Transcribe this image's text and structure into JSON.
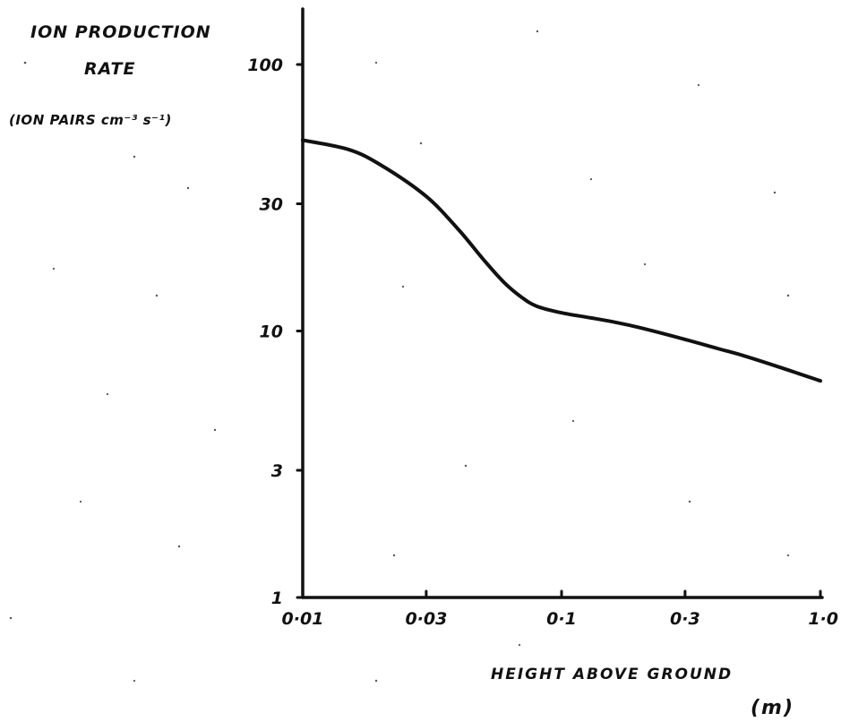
{
  "chart_data": {
    "type": "line",
    "ylabel_lines": [
      "ION PRODUCTION",
      "RATE"
    ],
    "ylabel_units": "(ION PAIRS cm⁻³ s⁻¹)",
    "xlabel_lines": [
      "HEIGHT ABOVE GROUND",
      "(m)"
    ],
    "x_scale": "log",
    "y_scale": "log",
    "xlim": [
      0.01,
      1.0
    ],
    "ylim": [
      1,
      100
    ],
    "x_ticks": [
      {
        "value": 0.01,
        "label": "0·01"
      },
      {
        "value": 0.03,
        "label": "0·03"
      },
      {
        "value": 0.1,
        "label": "0·1"
      },
      {
        "value": 0.3,
        "label": "0·3"
      },
      {
        "value": 1.0,
        "label": "1·0"
      }
    ],
    "y_ticks": [
      {
        "value": 1,
        "label": "1"
      },
      {
        "value": 3,
        "label": "3"
      },
      {
        "value": 10,
        "label": "10"
      },
      {
        "value": 30,
        "label": "30"
      },
      {
        "value": 100,
        "label": "100"
      }
    ],
    "grid": false,
    "series": [
      {
        "x": [
          0.01,
          0.015,
          0.02,
          0.03,
          0.04,
          0.05,
          0.06,
          0.07,
          0.08,
          0.1,
          0.13,
          0.16,
          0.2,
          0.3,
          0.4,
          0.5,
          0.7,
          1.0
        ],
        "y": [
          52,
          48,
          42,
          32,
          24,
          18.5,
          15.2,
          13.4,
          12.4,
          11.7,
          11.2,
          10.8,
          10.3,
          9.3,
          8.6,
          8.1,
          7.3,
          6.5
        ]
      }
    ]
  }
}
